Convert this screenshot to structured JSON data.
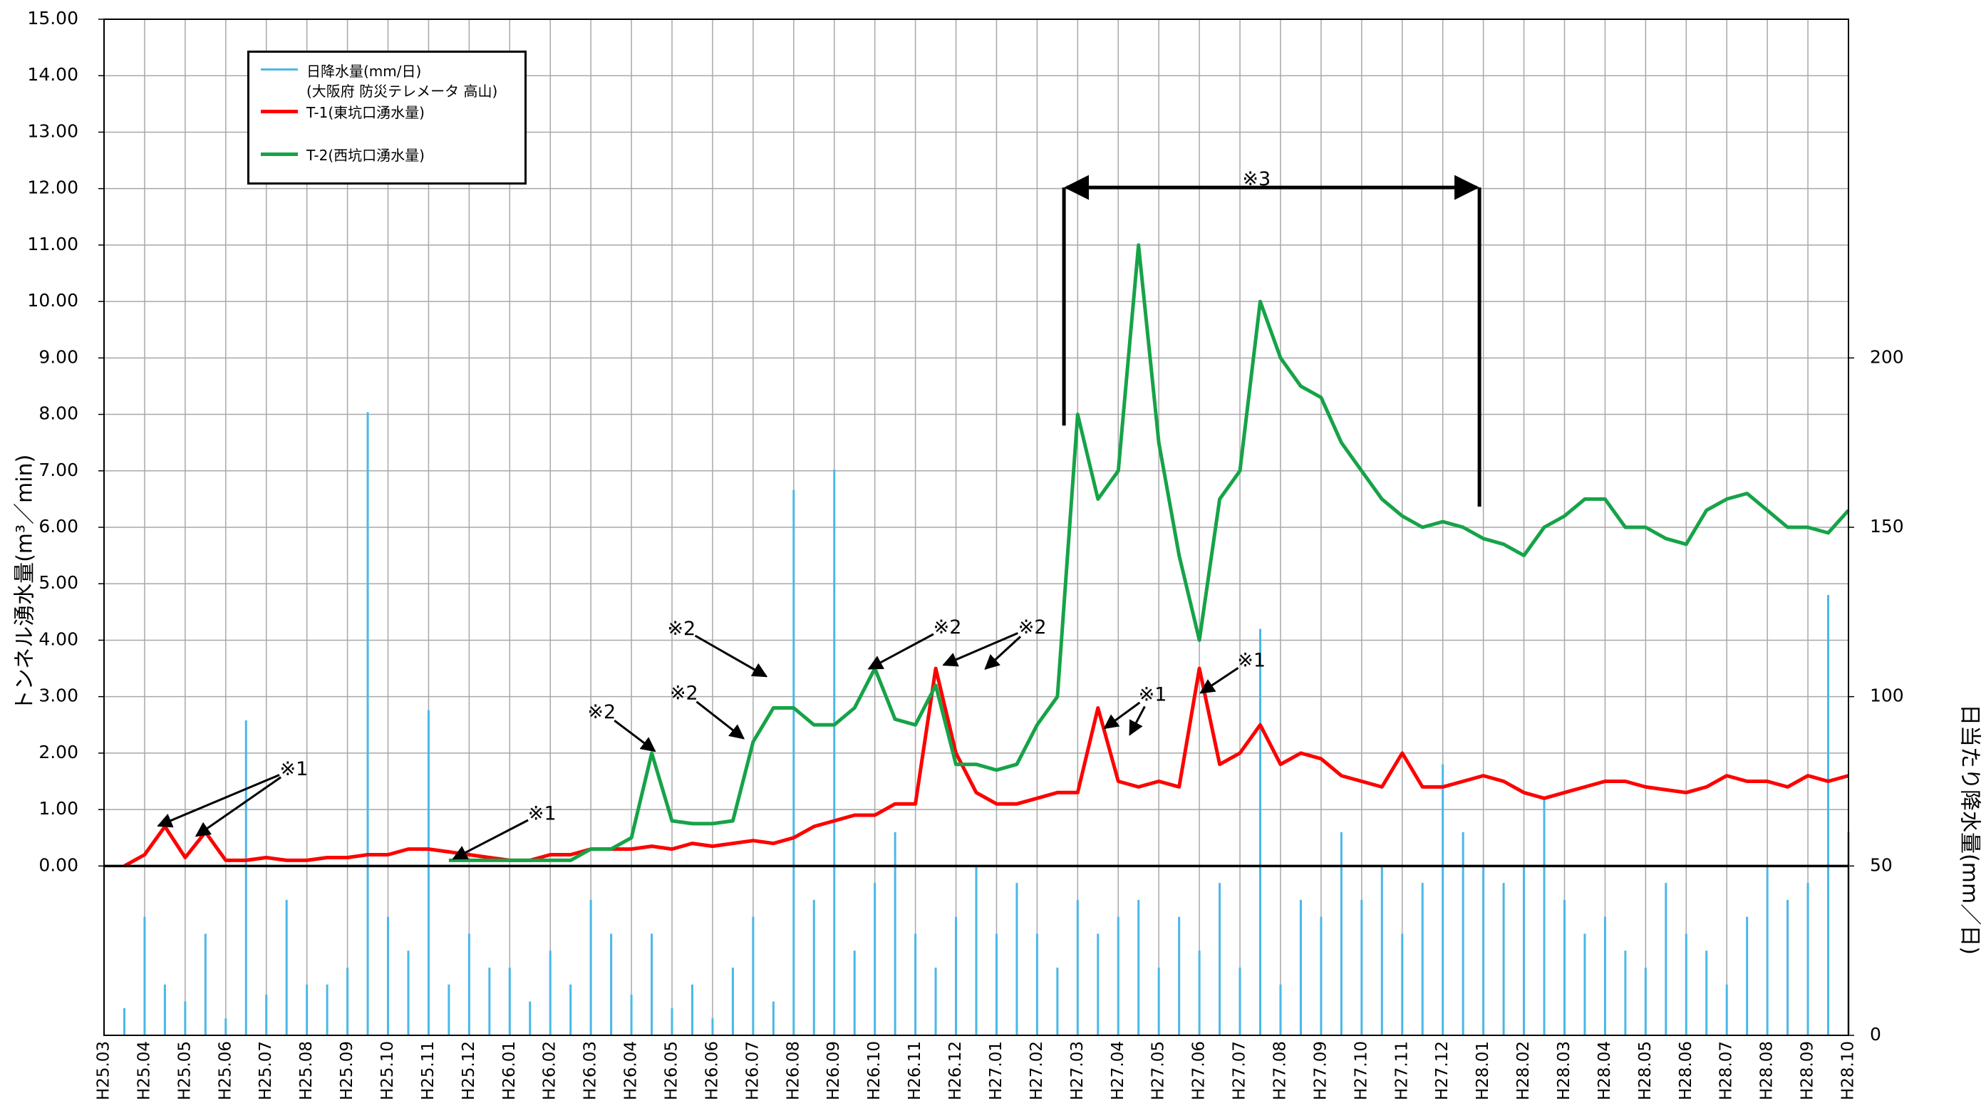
{
  "chart_data": {
    "type": "line",
    "ylabel": "トンネル湧水量(m³／min)",
    "y2label": "日当たり降水量(mm／日)",
    "categories": [
      "H25.03",
      null,
      "H25.04",
      null,
      "H25.05",
      null,
      "H25.06",
      null,
      "H25.07",
      null,
      "H25.08",
      null,
      "H25.09",
      null,
      "H25.10",
      null,
      "H25.11",
      null,
      "H25.12",
      null,
      "H26.01",
      null,
      "H26.02",
      null,
      "H26.03",
      null,
      "H26.04",
      null,
      "H26.05",
      null,
      "H26.06",
      null,
      "H26.07",
      null,
      "H26.08",
      null,
      "H26.09",
      null,
      "H26.10",
      null,
      "H26.11",
      null,
      "H26.12",
      null,
      "H27.01",
      null,
      "H27.02",
      null,
      "H27.03",
      null,
      "H27.04",
      null,
      "H27.05",
      null,
      "H27.06",
      null,
      "H27.07",
      null,
      "H27.08",
      null,
      "H27.09",
      null,
      "H27.10",
      null,
      "H27.11",
      null,
      "H27.12",
      null,
      "H28.01",
      null,
      "H28.02",
      null,
      "H28.03",
      null,
      "H28.04",
      null,
      "H28.05",
      null,
      "H28.06",
      null,
      "H28.07",
      null,
      "H28.08",
      null,
      "H28.09",
      null,
      "H28.10"
    ],
    "series": [
      {
        "name": "日降水量(mm/日)\n(大阪府 防災テレメータ 高山)",
        "color": "#4ab8e8",
        "type": "bar",
        "axis": "y2",
        "values": [
          0,
          8,
          35,
          15,
          10,
          30,
          5,
          93,
          12,
          40,
          15,
          15,
          20,
          184,
          35,
          25,
          96,
          15,
          30,
          20,
          20,
          10,
          25,
          15,
          40,
          30,
          12,
          30,
          8,
          15,
          5,
          20,
          35,
          10,
          161,
          40,
          167,
          25,
          45,
          60,
          30,
          20,
          35,
          50,
          30,
          45,
          30,
          20,
          40,
          30,
          35,
          40,
          20,
          35,
          25,
          45,
          20,
          120,
          15,
          40,
          35,
          60,
          40,
          50,
          30,
          45,
          80,
          60,
          50,
          45,
          50,
          70,
          40,
          30,
          35,
          25,
          20,
          45,
          30,
          25,
          15,
          35,
          50,
          40,
          45,
          130,
          60
        ]
      },
      {
        "name": "T-1(東坑口湧水量)",
        "color": "#ff0000",
        "values": [
          null,
          0.0,
          0.2,
          0.7,
          0.15,
          0.6,
          0.1,
          0.1,
          0.15,
          0.1,
          0.1,
          0.15,
          0.15,
          0.2,
          0.2,
          0.3,
          0.3,
          0.25,
          0.2,
          0.15,
          0.1,
          0.1,
          0.2,
          0.2,
          0.3,
          0.3,
          0.3,
          0.35,
          0.3,
          0.4,
          0.35,
          0.4,
          0.45,
          0.4,
          0.5,
          0.7,
          0.8,
          0.9,
          0.9,
          1.1,
          1.1,
          3.5,
          2.0,
          1.3,
          1.1,
          1.1,
          1.2,
          1.3,
          1.3,
          2.8,
          1.5,
          1.4,
          1.5,
          1.4,
          3.5,
          1.8,
          2.0,
          2.5,
          1.8,
          2.0,
          1.9,
          1.6,
          1.5,
          1.4,
          2.0,
          1.4,
          1.4,
          1.5,
          1.6,
          1.5,
          1.3,
          1.2,
          1.3,
          1.4,
          1.5,
          1.5,
          1.4,
          1.35,
          1.3,
          1.4,
          1.6,
          1.5,
          1.5,
          1.4,
          1.6,
          1.5,
          1.6
        ]
      },
      {
        "name": "T-2(西坑口湧水量)",
        "color": "#16a348",
        "values": [
          null,
          null,
          null,
          null,
          null,
          null,
          null,
          null,
          null,
          null,
          null,
          null,
          null,
          null,
          null,
          null,
          null,
          0.1,
          0.1,
          0.1,
          0.1,
          0.1,
          0.1,
          0.1,
          0.3,
          0.3,
          0.5,
          2.0,
          0.8,
          0.75,
          0.75,
          0.8,
          2.2,
          2.8,
          2.8,
          2.5,
          2.5,
          2.8,
          3.5,
          2.6,
          2.5,
          3.2,
          1.8,
          1.8,
          1.7,
          1.8,
          2.5,
          3.0,
          8.0,
          6.5,
          7.0,
          11.0,
          7.5,
          5.5,
          4.0,
          6.5,
          7.0,
          10.0,
          9.0,
          8.5,
          8.3,
          7.5,
          7.0,
          6.5,
          6.2,
          6.0,
          6.1,
          6.0,
          5.8,
          5.7,
          5.5,
          6.0,
          6.2,
          6.5,
          6.5,
          6.0,
          6.0,
          5.8,
          5.7,
          6.3,
          6.5,
          6.6,
          6.3,
          6.0,
          6.0,
          5.9,
          6.3
        ]
      }
    ],
    "ylim": [
      -3,
      15
    ],
    "yticks": [
      {
        "value": 0,
        "label": "0.00"
      },
      {
        "value": 1,
        "label": "1.00"
      },
      {
        "value": 2,
        "label": "2.00"
      },
      {
        "value": 3,
        "label": "3.00"
      },
      {
        "value": 4,
        "label": "4.00"
      },
      {
        "value": 5,
        "label": "5.00"
      },
      {
        "value": 6,
        "label": "6.00"
      },
      {
        "value": 7,
        "label": "7.00"
      },
      {
        "value": 8,
        "label": "8.00"
      },
      {
        "value": 9,
        "label": "9.00"
      },
      {
        "value": 10,
        "label": "10.00"
      },
      {
        "value": 11,
        "label": "11.00"
      },
      {
        "value": 12,
        "label": "12.00"
      },
      {
        "value": 13,
        "label": "13.00"
      },
      {
        "value": 14,
        "label": "14.00"
      },
      {
        "value": 15,
        "label": "15.00"
      }
    ],
    "y2lim": [
      0,
      300
    ],
    "y2ticks": [
      0,
      50,
      100,
      150,
      200
    ],
    "grid": true,
    "annotations": [
      "※1",
      "※1",
      "※2",
      "※2",
      "※2",
      "※2",
      "※2",
      "※1",
      "※1",
      "※3"
    ]
  }
}
